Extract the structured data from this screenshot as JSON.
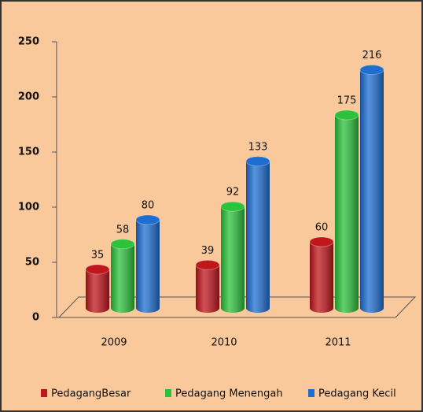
{
  "chart_data": {
    "type": "bar",
    "categories": [
      "2009",
      "2010",
      "2011"
    ],
    "series": [
      {
        "name": "PedagangBesar",
        "color": "#c0161c",
        "values": [
          35,
          39,
          60
        ]
      },
      {
        "name": "Pedagang Menengah",
        "color": "#2cc23a",
        "values": [
          58,
          92,
          175
        ]
      },
      {
        "name": "Pedagang Kecil",
        "color": "#1e6ed2",
        "values": [
          80,
          133,
          216
        ]
      }
    ],
    "ylim": [
      0,
      250
    ],
    "yticks": [
      0,
      50,
      100,
      150,
      200,
      250
    ]
  }
}
